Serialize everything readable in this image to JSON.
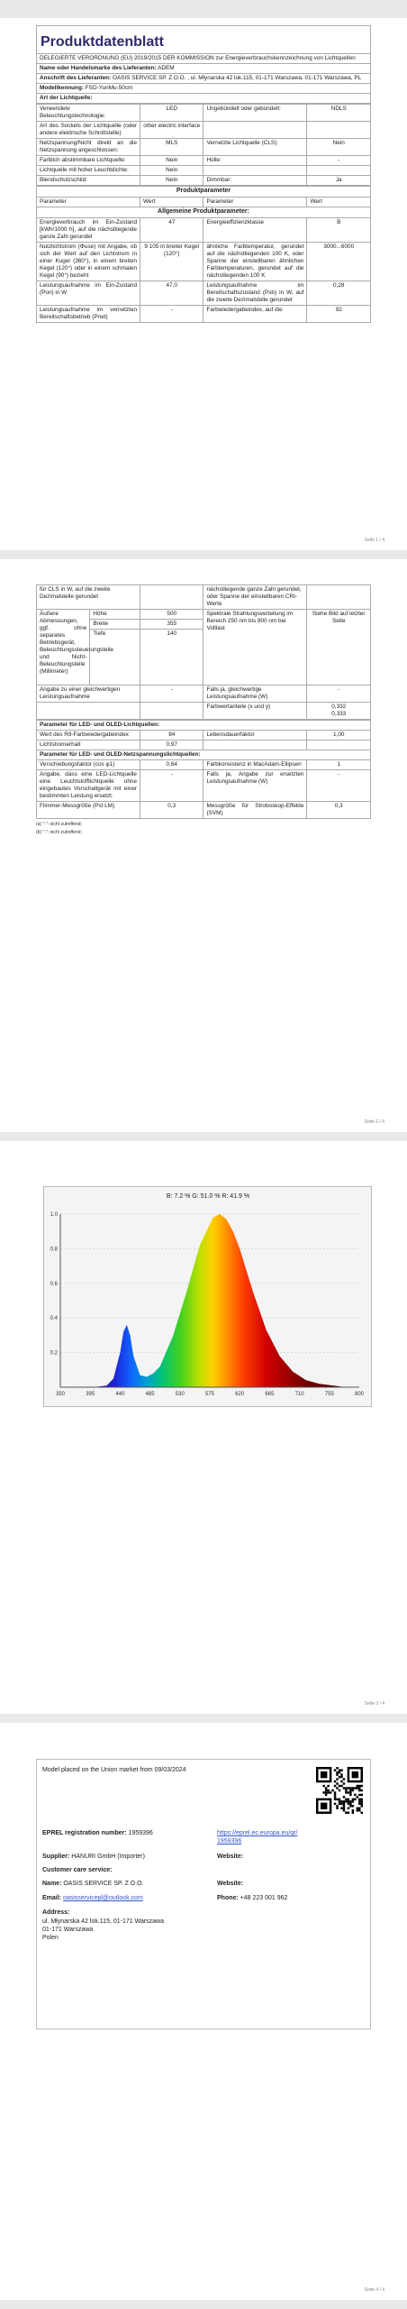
{
  "doc": {
    "title": "Produktdatenblatt",
    "regulation": "DELEGIERTE VERORDNUNG (EU) 2019/2015 DER KOMMISSION zur Energieverbrauchskennzeichnung von Lichtquellen",
    "supplier_name_label": "Name oder Handelsmarke des Lieferanten:",
    "supplier_name_value": "ADEM",
    "supplier_address_label": "Anschrift des Lieferanten:",
    "supplier_address_value": "OASIS SERVICE SP. Z O.O. , ul. Młynarska 42 lok.115, 01-171 Warszawa, 01-171 Warszawa, PL",
    "model_label": "Modellkennung:",
    "model_value": "FSD-YunMu-50cm",
    "light_source_type": "Art der Lichtquelle:"
  },
  "type_rows": [
    [
      "Verwendete Beleuchtungstechnologie:",
      "LED",
      "Ungebündelt oder gebündelt:",
      "NDLS"
    ],
    [
      "Art des Sockels der Lichtquelle (oder andere elektrische Schnittstelle)",
      "other electric interface",
      "",
      ""
    ],
    [
      "Netzspannung/Nicht direkt an die Netzspannung angeschlossen:",
      "MLS",
      "Vernetzte Lichtquelle (CLS):",
      "Nein"
    ],
    [
      "Farblich abstimmbare Lichtquelle:",
      "Nein",
      "Hülle:",
      "-"
    ],
    [
      "Lichtquelle mit hoher Leuchtdichte:",
      "Nein",
      "",
      ""
    ],
    [
      "Blendschutzschild:",
      "Nein",
      "Dimmbar:",
      "Ja"
    ]
  ],
  "params_title": "Produktparameter",
  "params_header": [
    "Parameter",
    "Wert",
    "Parameter",
    "Wert"
  ],
  "general_title": "Allgemeine Produktparameter:",
  "general_rows_p1": [
    [
      "Energieverbrauch im Ein-Zustand [kWh/1000 h], auf die nächstliegende ganze Zahl gerundet",
      "47",
      "Energieeffizienzklasse",
      "B"
    ],
    [
      "Nutzlichtstrom (Φuse) mit Angabe, ob sich der Wert auf den Lichtstrom in einer Kugel (360°), in einem breiten Kegel (120°) oder in einem schmalen Kegel (90°) bezieht",
      "9 105 in breiter Kegel (120°)",
      "ähnliche Farbtemperatur, gerundet auf die nächstliegenden 100 K, oder Spanne der einstellbaren ähnlichen Farbtemperaturen, gerundet auf die nächstliegenden 100 K",
      "3000...6000"
    ],
    [
      "Leistungsaufnahme im Ein-Zustand (Pon) in W",
      "47,0",
      "Leistungsaufnahme im Bereitschaftszustand (Psb) in W, auf die zweite Dezimalstelle gerundet",
      "0,28"
    ],
    [
      "Leistungsaufnahme im vernetzten Bereitschaftsbetrieb (Pnet)",
      "-",
      "Farbwiedergabeindex, auf die",
      "92"
    ]
  ],
  "p2": {
    "cont_left": "für CLS in W, auf die zweite Dezimalstelle gerundet",
    "cont_right": "nächstliegende ganze Zahl gerundet, oder Spanne der einstellbaren CRI-Werte",
    "dims_label": "Äußere Abmessungen, ggf. ohne separates Betriebsgerät, Beleuchtungssteuerungsteile und Nicht-Beleuchtungsteile (Millimeter)",
    "dims": [
      [
        "Höhe",
        "500"
      ],
      [
        "Breite",
        "355"
      ],
      [
        "Tiefe",
        "140"
      ]
    ],
    "spectral_label": "Spektrale Strahlungsverteilung im Bereich 250 nm bis 800 nm bei Volllast",
    "spectral_value": "Siehe Bild auf letzter Seite",
    "equiv_label": "Angabe zu einer gleichwertigen Leistungsaufnahme",
    "equiv_value": "-",
    "equiv_right_label": "Falls ja, gleichwertige Leistungsaufnahme (W)",
    "equiv_right_value": "-",
    "chroma_label": "Farbwertanteile (x und y)",
    "chroma_value": "0,332\n0,333",
    "led_title": "Parameter für LED- und OLED-Lichtquellen:",
    "led_rows": [
      [
        "Wert des R9-Farbwiedergabeindex",
        "84",
        "Lebensdauerfaktor",
        "1,00"
      ],
      [
        "Lichtstromerhalt",
        "0,97",
        "",
        ""
      ]
    ],
    "mains_title": "Parameter für LED- und OLED-Netzspannungslichtquellen:",
    "mains_rows": [
      [
        "Verschiebungsfaktor (cos φ1)",
        "0,64",
        "Farbkonsistenz in MacAdam-Ellipsen",
        "1"
      ],
      [
        "Angabe, dass eine LED-Lichtquelle eine Leuchtstofflichtquelle ohne eingebautes Vorschaltgerät mit einer bestimmten Leistung ersetzt.",
        "-",
        "Falls ja, Angabe zur ersetzten Leistungsaufnahme (W)",
        "-"
      ],
      [
        "Flimmer-Messgröße (Pst LM)",
        "0,3",
        "Messgröße für Stroboskop-Effekte (SVM)",
        "0,3"
      ]
    ],
    "footnote1": "(a) \"-\": nicht zutreffend;",
    "footnote2": "(b) \"-\": nicht zutreffend;"
  },
  "chart_data": {
    "type": "area",
    "title": "",
    "header_text": "B: 7.2 %  G: 51.0 %  R: 41.9 %",
    "xlabel": "",
    "ylabel": "",
    "xlim": [
      350,
      800
    ],
    "ylim": [
      0,
      1.0
    ],
    "x_ticks": [
      350,
      395,
      440,
      485,
      530,
      575,
      620,
      665,
      710,
      755,
      800
    ],
    "y_ticks": [
      0.2,
      0.4,
      0.6,
      0.8,
      1.0
    ],
    "x": [
      350,
      400,
      420,
      430,
      440,
      445,
      450,
      455,
      460,
      470,
      480,
      490,
      500,
      520,
      540,
      560,
      580,
      590,
      600,
      610,
      620,
      640,
      660,
      680,
      700,
      720,
      740,
      760,
      780,
      800
    ],
    "y": [
      0.0,
      0.0,
      0.01,
      0.05,
      0.2,
      0.32,
      0.36,
      0.3,
      0.18,
      0.07,
      0.06,
      0.08,
      0.12,
      0.3,
      0.55,
      0.82,
      0.98,
      1.0,
      0.97,
      0.9,
      0.8,
      0.55,
      0.33,
      0.18,
      0.09,
      0.04,
      0.02,
      0.01,
      0.0,
      0.0
    ]
  },
  "label_page": {
    "placed": "Model placed on the Union market from 09/03/2024",
    "eprel_label": "EPREL registration number:",
    "eprel_value": "1959396",
    "eprel_link": "https://eprel.ec.europa.eu/qr/1959396",
    "supplier_label": "Supplier:",
    "supplier_value": "HANURI GmbH (Importer)",
    "website_label": "Website:",
    "care_label": "Customer care service:",
    "name_label": "Name:",
    "name_value": "OASIS SERVICE SP. Z O.O.",
    "website2_label": "Website:",
    "email_label": "Email:",
    "email_value": "oasisservicepl@outlook.com",
    "phone_label": "Phone:",
    "phone_value": "+48 223 001 962",
    "address_label": "Address:",
    "address_line1": "ul. Młynarska 42 lok.115, 01-171 Warszawa",
    "address_line2": "01-171 Warszawa",
    "address_line3": "Polen"
  },
  "page_numbers": [
    "Seite 1 / 4",
    "Seite 2 / 4",
    "Seite 3 / 4",
    "Seite 4 / 4"
  ]
}
